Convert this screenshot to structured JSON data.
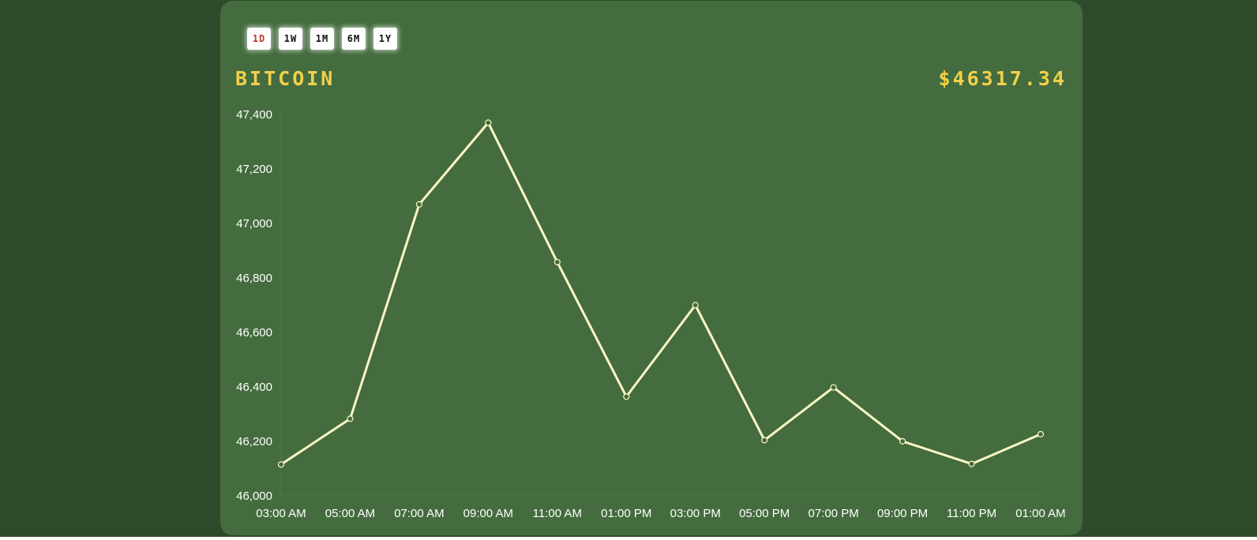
{
  "coin": {
    "name": "BITCOIN",
    "price": "$46317.34"
  },
  "range_buttons": [
    {
      "label": "1D",
      "active": true
    },
    {
      "label": "1W",
      "active": false
    },
    {
      "label": "1M",
      "active": false
    },
    {
      "label": "6M",
      "active": false
    },
    {
      "label": "1Y",
      "active": false
    }
  ],
  "colors": {
    "page_background": "#2d4a2a",
    "card_background": "#446c3e",
    "accent_text": "#f2d04b",
    "line": "#fbf7c6",
    "active_button_text": "#c0392b"
  },
  "chart_data": {
    "type": "line",
    "title": "",
    "xlabel": "",
    "ylabel": "",
    "categories": [
      "03:00 AM",
      "05:00 AM",
      "07:00 AM",
      "09:00 AM",
      "11:00 AM",
      "01:00 PM",
      "03:00 PM",
      "05:00 PM",
      "07:00 PM",
      "09:00 PM",
      "11:00 PM",
      "01:00 AM"
    ],
    "series": [
      {
        "values": [
          46115,
          46283,
          47070,
          47370,
          46858,
          46364,
          46700,
          46204,
          46398,
          46200,
          46117,
          46226
        ]
      }
    ],
    "ylim": [
      46000,
      47400
    ],
    "yticks": [
      46000,
      46200,
      46400,
      46600,
      46800,
      47000,
      47200,
      47400
    ],
    "ytick_labels": [
      "46,000",
      "46,200",
      "46,400",
      "46,600",
      "46,800",
      "47,000",
      "47,200",
      "47,400"
    ],
    "grid": false,
    "legend": "none"
  }
}
